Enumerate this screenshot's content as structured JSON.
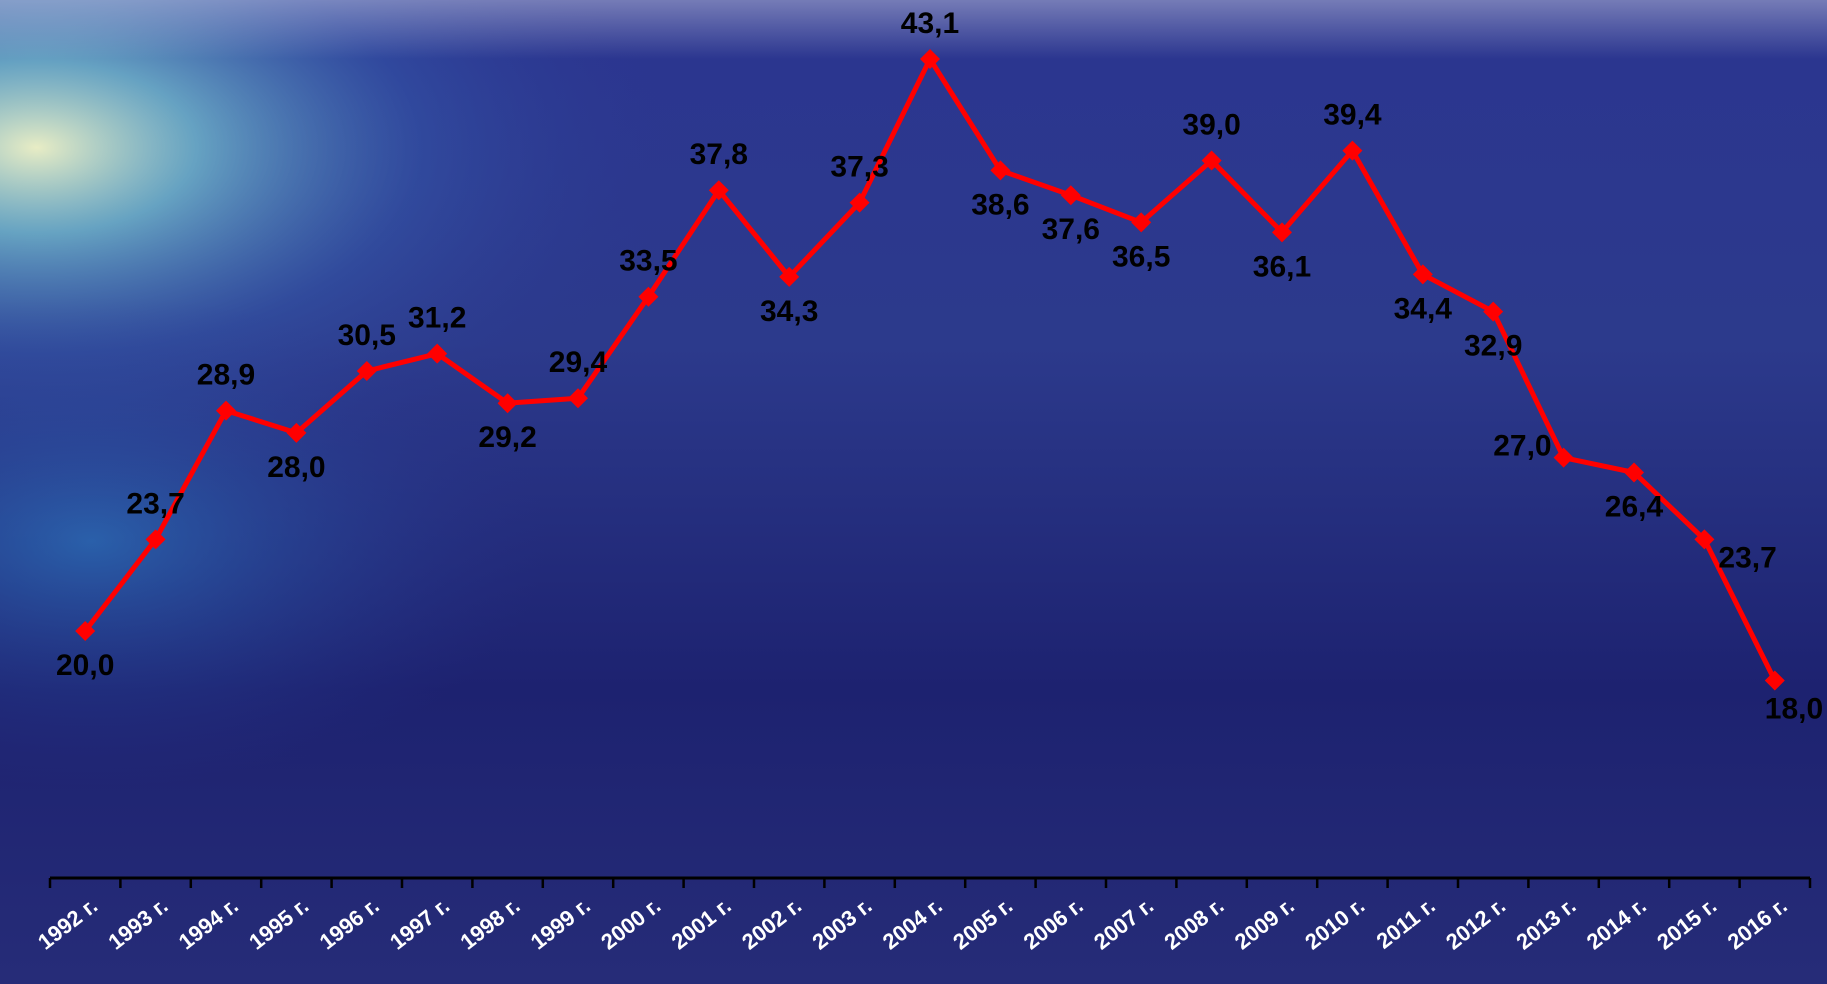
{
  "chart_data": {
    "type": "line",
    "title": "",
    "xlabel": "",
    "ylabel": "",
    "categories": [
      "1992 г.",
      "1993 г.",
      "1994 г.",
      "1995 г.",
      "1996 г.",
      "1997 г.",
      "1998 г.",
      "1999 г.",
      "2000 г.",
      "2001 г.",
      "2002 г.",
      "2003 г.",
      "2004 г.",
      "2005 г.",
      "2006 г.",
      "2007 г.",
      "2008 г.",
      "2009 г.",
      "2010 г.",
      "2011 г.",
      "2012 г.",
      "2013 г.",
      "2014 г.",
      "2015 г.",
      "2016 г."
    ],
    "series": [
      {
        "values": [
          20.0,
          23.7,
          28.9,
          28.0,
          30.5,
          31.2,
          29.2,
          29.4,
          33.5,
          37.8,
          34.3,
          37.3,
          43.1,
          38.6,
          37.6,
          36.5,
          39.0,
          36.1,
          39.4,
          34.4,
          32.9,
          27.0,
          26.4,
          23.7,
          18.0
        ],
        "labels": [
          "20,0",
          "23,7",
          "28,9",
          "28,0",
          "30,5",
          "31,2",
          "29,2",
          "29,4",
          "33,5",
          "37,8",
          "34,3",
          "37,3",
          "43,1",
          "38,6",
          "37,6",
          "36,5",
          "39,0",
          "36,1",
          "39,4",
          "34,4",
          "32,9",
          "27,0",
          "26,4",
          "23,7",
          "18,0"
        ]
      }
    ],
    "ylim": [
      10,
      45
    ],
    "grid": false,
    "legend": "none",
    "colors": {
      "line": "#ff0000",
      "label": "#000000",
      "axis": "#000000",
      "tick_label": "#ffffff"
    }
  }
}
